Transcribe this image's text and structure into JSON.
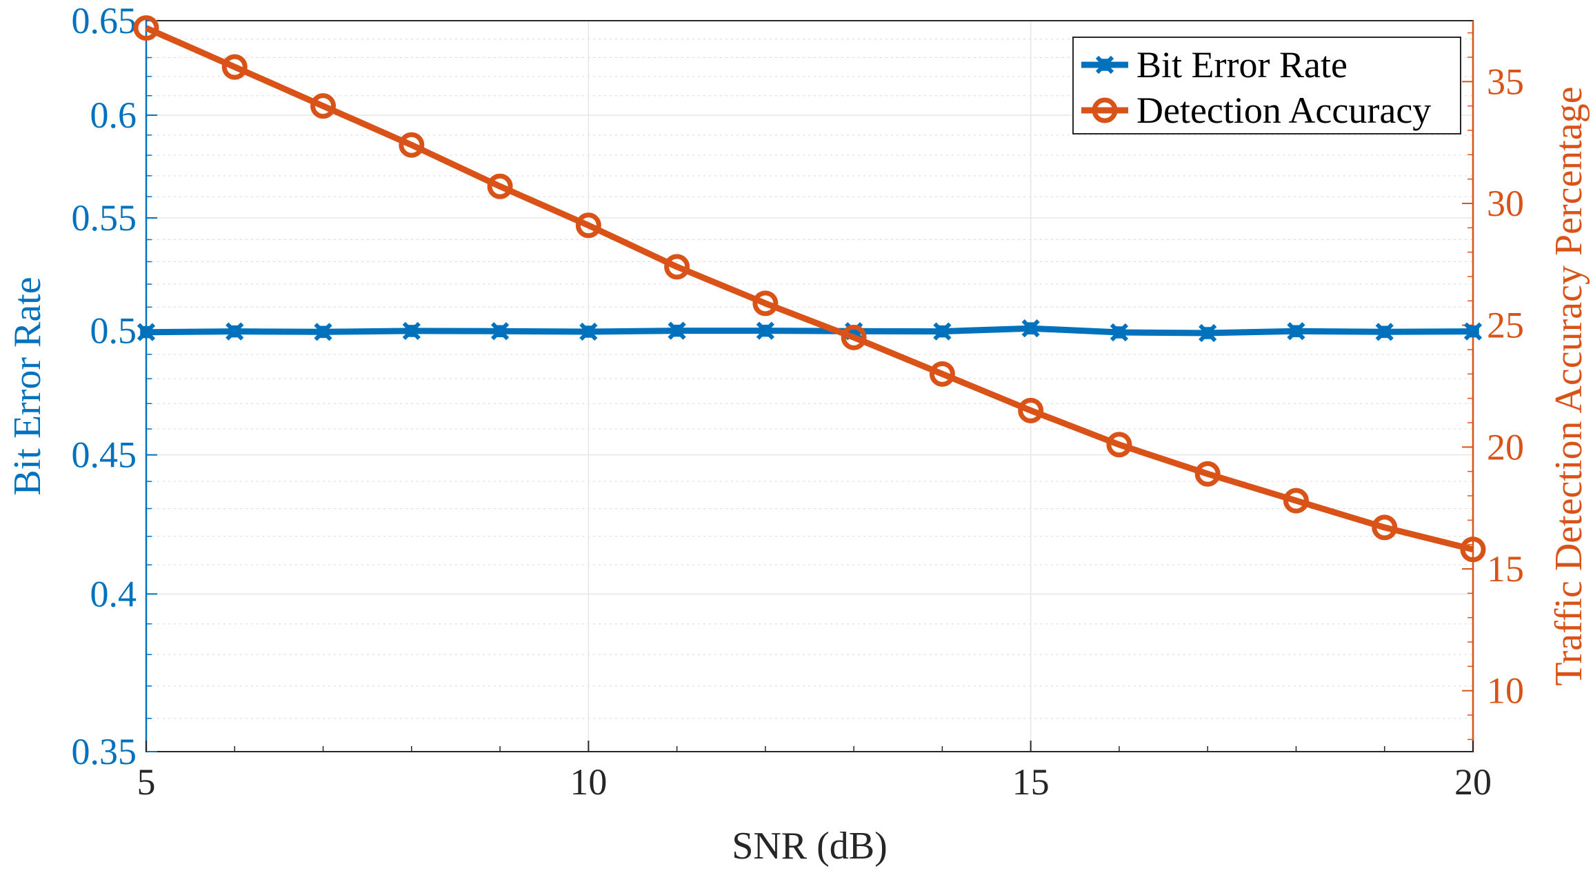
{
  "chart_data": {
    "type": "line",
    "x": [
      5,
      6,
      7,
      8,
      9,
      10,
      11,
      12,
      13,
      14,
      15,
      16,
      17,
      18,
      19,
      20
    ],
    "xlabel": "SNR (dB)",
    "xlim": [
      5,
      20
    ],
    "xticks": [
      "5",
      "10",
      "15",
      "20"
    ],
    "y_left": {
      "label": "Bit Error Rate",
      "scale": "log",
      "lim": [
        0.35,
        0.65
      ],
      "ticks": [
        "0.35",
        "0.4",
        "0.45",
        "0.5",
        "0.55",
        "0.6",
        "0.65"
      ],
      "color": "#0072BD"
    },
    "y_right": {
      "label": "Traffic Detection Accuracy Percentage",
      "scale": "linear",
      "lim": [
        7.5,
        37.5
      ],
      "ticks": [
        "10",
        "15",
        "20",
        "25",
        "30",
        "35"
      ],
      "color": "#D95319"
    },
    "series": [
      {
        "name": "Bit Error Rate",
        "axis": "left",
        "marker": "x-diamond",
        "color": "#0072BD",
        "values": [
          0.4993,
          0.4996,
          0.4994,
          0.4998,
          0.4997,
          0.4995,
          0.4999,
          0.4999,
          0.4997,
          0.4996,
          0.5009,
          0.4992,
          0.4989,
          0.4997,
          0.4994,
          0.4996
        ]
      },
      {
        "name": "Detection Accuracy",
        "axis": "right",
        "marker": "circle",
        "color": "#D95319",
        "values": [
          37.2,
          35.6,
          34.0,
          32.4,
          30.7,
          29.1,
          27.4,
          25.9,
          24.5,
          23.0,
          21.5,
          20.1,
          18.9,
          17.8,
          16.7,
          15.8
        ]
      }
    ],
    "grid": true,
    "minor_grid": true,
    "legend_position": "top-right"
  }
}
